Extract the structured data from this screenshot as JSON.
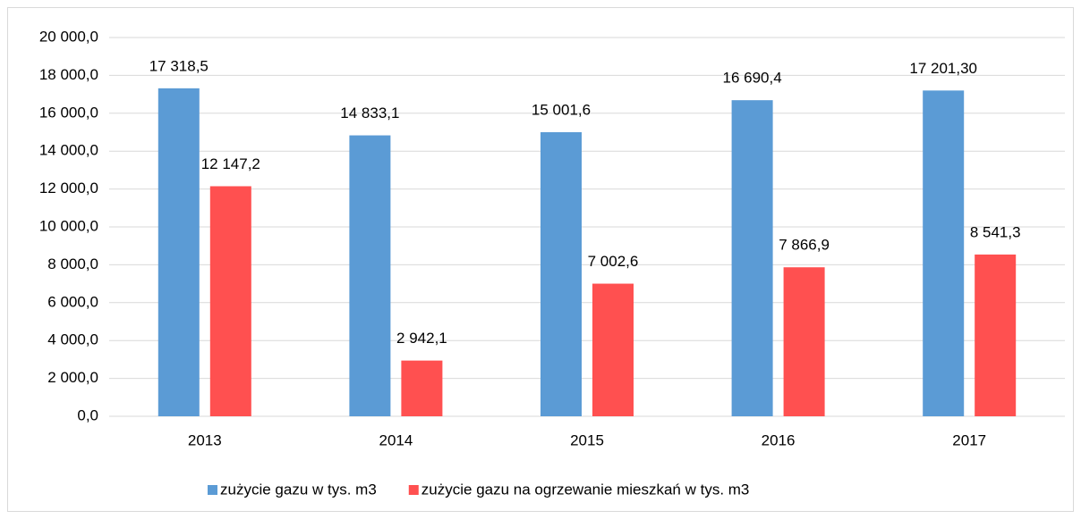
{
  "chart_data": {
    "type": "bar",
    "categories": [
      "2013",
      "2014",
      "2015",
      "2016",
      "2017"
    ],
    "series": [
      {
        "name": "zużycie gazu w tys. m3",
        "color": "#5b9bd5",
        "values": [
          17318.5,
          14833.1,
          15001.6,
          16690.4,
          17201.3
        ],
        "value_labels": [
          "17 318,5",
          "14 833,1",
          "15 001,6",
          "16 690,4",
          "17 201,30"
        ]
      },
      {
        "name": "zużycie gazu na ogrzewanie mieszkań w tys. m3",
        "color": "#ff5050",
        "values": [
          12147.2,
          2942.1,
          7002.6,
          7866.9,
          8541.3
        ],
        "value_labels": [
          "12 147,2",
          "2 942,1",
          "7 002,6",
          "7 866,9",
          "8 541,3"
        ]
      }
    ],
    "ylim": [
      0,
      20000
    ],
    "yticks": [
      {
        "value": 0,
        "label": "0,0"
      },
      {
        "value": 2000,
        "label": "2 000,0"
      },
      {
        "value": 4000,
        "label": "4 000,0"
      },
      {
        "value": 6000,
        "label": "6 000,0"
      },
      {
        "value": 8000,
        "label": "8 000,0"
      },
      {
        "value": 10000,
        "label": "10 000,0"
      },
      {
        "value": 12000,
        "label": "12 000,0"
      },
      {
        "value": 14000,
        "label": "14 000,0"
      },
      {
        "value": 16000,
        "label": "16 000,0"
      },
      {
        "value": 18000,
        "label": "18 000,0"
      },
      {
        "value": 20000,
        "label": "20 000,0"
      }
    ],
    "grid": true,
    "legend": "bottom"
  }
}
